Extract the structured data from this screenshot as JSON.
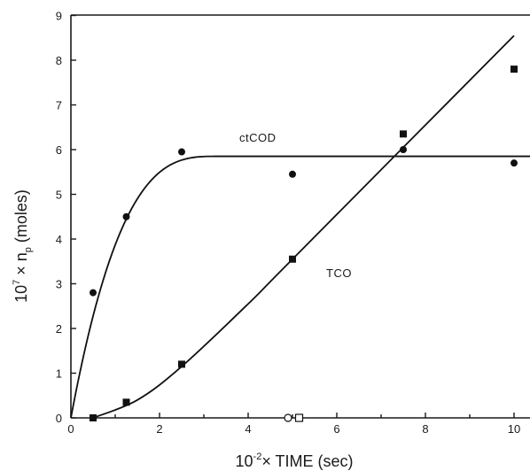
{
  "chart_data": {
    "type": "scatter",
    "xlabel": {
      "base": "10",
      "exponent": "-2",
      "rest": "× TIME (sec)"
    },
    "ylabel": {
      "base": "10",
      "exponent": "7",
      "rest": " × n",
      "subscript": "p",
      "tail": " (moles)"
    },
    "xlim": [
      0,
      10.5
    ],
    "ylim": [
      0,
      9
    ],
    "x_ticks": [
      0,
      2,
      4,
      6,
      8,
      10
    ],
    "y_ticks": [
      0,
      1,
      2,
      3,
      4,
      5,
      6,
      7,
      8,
      9
    ],
    "grid": false,
    "series": [
      {
        "name": "ctCOD",
        "marker": "circle",
        "x": [
          0.5,
          1.25,
          2.5,
          5,
          7.5,
          10
        ],
        "y": [
          2.8,
          4.5,
          5.95,
          5.45,
          6.0,
          5.7
        ],
        "fit": {
          "kind": "saturation",
          "plateau": 5.85,
          "x_sat": 3.3
        }
      },
      {
        "name": "TCO",
        "marker": "square",
        "x": [
          0.5,
          1.25,
          2.5,
          5,
          7.5,
          10
        ],
        "y": [
          0,
          0.35,
          1.2,
          3.55,
          6.35,
          7.8
        ],
        "fit": {
          "kind": "induction-linear",
          "points": [
            [
              0.5,
              0
            ],
            [
              1.5,
              0.4
            ],
            [
              2.5,
              1.15
            ],
            [
              4,
              2.55
            ],
            [
              5,
              3.55
            ],
            [
              10,
              8.55
            ]
          ]
        }
      }
    ],
    "extra_markers": [
      {
        "x": 4.9,
        "y": 0,
        "shape": "open-circle"
      },
      {
        "x": 5.15,
        "y": 0,
        "shape": "open-square"
      }
    ]
  }
}
